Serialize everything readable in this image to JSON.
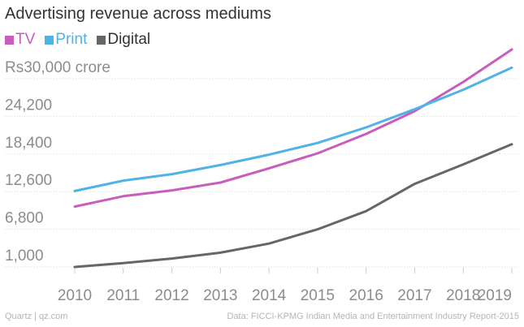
{
  "chart_data": {
    "type": "line",
    "title": "Advertising revenue across mediums",
    "categories": [
      "2010",
      "2011",
      "2012",
      "2013",
      "2014",
      "2015",
      "2016",
      "2017",
      "2018",
      "2019"
    ],
    "series": [
      {
        "name": "TV",
        "color": "#c75dbd",
        "values": [
          10300,
          11900,
          12800,
          14000,
          16200,
          18500,
          21500,
          25000,
          29500,
          34500
        ]
      },
      {
        "name": "Print",
        "color": "#51b2e5",
        "values": [
          12700,
          14300,
          15300,
          16700,
          18300,
          20100,
          22500,
          25300,
          28300,
          31700
        ]
      },
      {
        "name": "Digital",
        "color": "#666666",
        "values": [
          1000,
          1600,
          2300,
          3200,
          4600,
          6800,
          9600,
          13800,
          16800,
          19900
        ]
      }
    ],
    "y_ticks": [
      1000,
      6800,
      12600,
      18400,
      24200,
      30000
    ],
    "y_tick_labels": [
      "1,000",
      "6,800",
      "12,600",
      "18,400",
      "24,200",
      "Rs30,000 crore"
    ],
    "ylim": [
      1000,
      30000
    ],
    "xlabel": "",
    "ylabel": ""
  },
  "footer": {
    "source_left": "Quartz | qz.com",
    "source_right": "Data: FICCI-KPMG Indian Media and Entertainment Industry Report-2015"
  }
}
